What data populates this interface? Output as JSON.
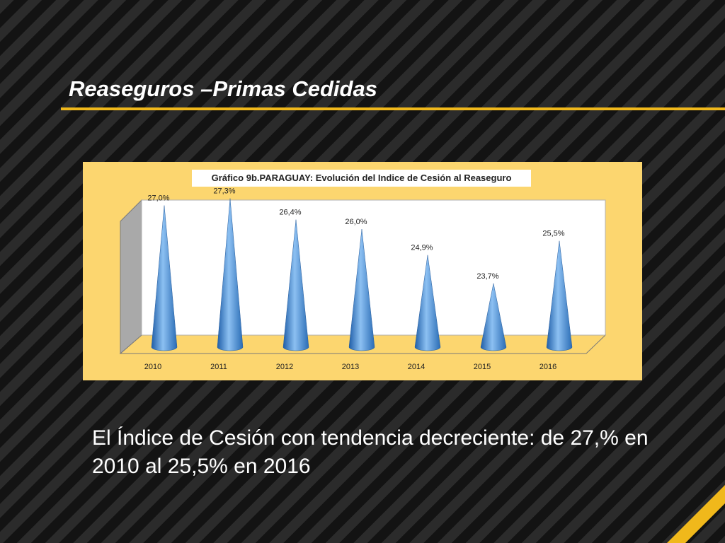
{
  "slide": {
    "title": "Reaseguros –Primas Cedidas",
    "body": "El Índice de Cesión  con tendencia decreciente:  de 27,% en 2010 al 25,5% en 2016"
  },
  "colors": {
    "accent": "#f0b81b",
    "panel": "#fcd66f",
    "cone": "#4a90d9"
  },
  "chart_data": {
    "type": "bar",
    "bar_shape": "cone",
    "title": "Gráfico 9b.PARAGUAY: Evolución del Indice de Cesión al Reaseguro",
    "categories": [
      "2010",
      "2011",
      "2012",
      "2013",
      "2014",
      "2015",
      "2016"
    ],
    "values": [
      27.0,
      27.3,
      26.4,
      26.0,
      24.9,
      23.7,
      25.5
    ],
    "data_labels": [
      "27,0%",
      "27,3%",
      "26,4%",
      "26,0%",
      "24,9%",
      "23,7%",
      "25,5%"
    ],
    "xlabel": "",
    "ylabel": "",
    "ylim": [
      21,
      28
    ],
    "grid": false,
    "legend": "none"
  }
}
